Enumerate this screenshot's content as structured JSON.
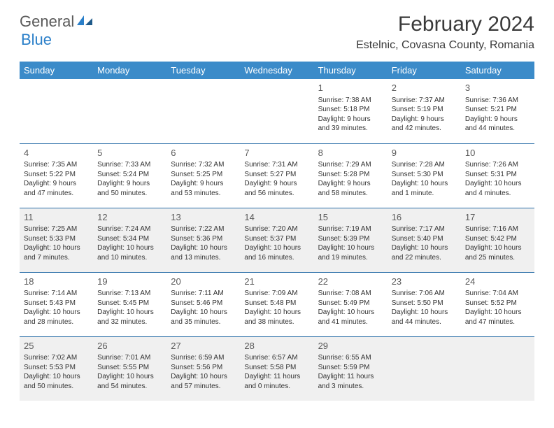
{
  "logo": {
    "part1": "General",
    "part2": "Blue"
  },
  "title": "February 2024",
  "location": "Estelnic, Covasna County, Romania",
  "colors": {
    "header_bg": "#3b8bc9",
    "header_fg": "#ffffff",
    "row_border": "#2a6ea8",
    "shaded_bg": "#f0f0f0",
    "logo_gray": "#5a5a5a",
    "logo_blue": "#2a7fc9"
  },
  "weekdays": [
    "Sunday",
    "Monday",
    "Tuesday",
    "Wednesday",
    "Thursday",
    "Friday",
    "Saturday"
  ],
  "weeks": [
    [
      null,
      null,
      null,
      null,
      {
        "n": "1",
        "sr": "7:38 AM",
        "ss": "5:18 PM",
        "dl": "9 hours and 39 minutes."
      },
      {
        "n": "2",
        "sr": "7:37 AM",
        "ss": "5:19 PM",
        "dl": "9 hours and 42 minutes."
      },
      {
        "n": "3",
        "sr": "7:36 AM",
        "ss": "5:21 PM",
        "dl": "9 hours and 44 minutes."
      }
    ],
    [
      {
        "n": "4",
        "sr": "7:35 AM",
        "ss": "5:22 PM",
        "dl": "9 hours and 47 minutes."
      },
      {
        "n": "5",
        "sr": "7:33 AM",
        "ss": "5:24 PM",
        "dl": "9 hours and 50 minutes."
      },
      {
        "n": "6",
        "sr": "7:32 AM",
        "ss": "5:25 PM",
        "dl": "9 hours and 53 minutes."
      },
      {
        "n": "7",
        "sr": "7:31 AM",
        "ss": "5:27 PM",
        "dl": "9 hours and 56 minutes."
      },
      {
        "n": "8",
        "sr": "7:29 AM",
        "ss": "5:28 PM",
        "dl": "9 hours and 58 minutes."
      },
      {
        "n": "9",
        "sr": "7:28 AM",
        "ss": "5:30 PM",
        "dl": "10 hours and 1 minute."
      },
      {
        "n": "10",
        "sr": "7:26 AM",
        "ss": "5:31 PM",
        "dl": "10 hours and 4 minutes."
      }
    ],
    [
      {
        "n": "11",
        "sr": "7:25 AM",
        "ss": "5:33 PM",
        "dl": "10 hours and 7 minutes."
      },
      {
        "n": "12",
        "sr": "7:24 AM",
        "ss": "5:34 PM",
        "dl": "10 hours and 10 minutes."
      },
      {
        "n": "13",
        "sr": "7:22 AM",
        "ss": "5:36 PM",
        "dl": "10 hours and 13 minutes."
      },
      {
        "n": "14",
        "sr": "7:20 AM",
        "ss": "5:37 PM",
        "dl": "10 hours and 16 minutes."
      },
      {
        "n": "15",
        "sr": "7:19 AM",
        "ss": "5:39 PM",
        "dl": "10 hours and 19 minutes."
      },
      {
        "n": "16",
        "sr": "7:17 AM",
        "ss": "5:40 PM",
        "dl": "10 hours and 22 minutes."
      },
      {
        "n": "17",
        "sr": "7:16 AM",
        "ss": "5:42 PM",
        "dl": "10 hours and 25 minutes."
      }
    ],
    [
      {
        "n": "18",
        "sr": "7:14 AM",
        "ss": "5:43 PM",
        "dl": "10 hours and 28 minutes."
      },
      {
        "n": "19",
        "sr": "7:13 AM",
        "ss": "5:45 PM",
        "dl": "10 hours and 32 minutes."
      },
      {
        "n": "20",
        "sr": "7:11 AM",
        "ss": "5:46 PM",
        "dl": "10 hours and 35 minutes."
      },
      {
        "n": "21",
        "sr": "7:09 AM",
        "ss": "5:48 PM",
        "dl": "10 hours and 38 minutes."
      },
      {
        "n": "22",
        "sr": "7:08 AM",
        "ss": "5:49 PM",
        "dl": "10 hours and 41 minutes."
      },
      {
        "n": "23",
        "sr": "7:06 AM",
        "ss": "5:50 PM",
        "dl": "10 hours and 44 minutes."
      },
      {
        "n": "24",
        "sr": "7:04 AM",
        "ss": "5:52 PM",
        "dl": "10 hours and 47 minutes."
      }
    ],
    [
      {
        "n": "25",
        "sr": "7:02 AM",
        "ss": "5:53 PM",
        "dl": "10 hours and 50 minutes."
      },
      {
        "n": "26",
        "sr": "7:01 AM",
        "ss": "5:55 PM",
        "dl": "10 hours and 54 minutes."
      },
      {
        "n": "27",
        "sr": "6:59 AM",
        "ss": "5:56 PM",
        "dl": "10 hours and 57 minutes."
      },
      {
        "n": "28",
        "sr": "6:57 AM",
        "ss": "5:58 PM",
        "dl": "11 hours and 0 minutes."
      },
      {
        "n": "29",
        "sr": "6:55 AM",
        "ss": "5:59 PM",
        "dl": "11 hours and 3 minutes."
      },
      null,
      null
    ]
  ],
  "shaded_rows": [
    2,
    4
  ],
  "labels": {
    "sunrise": "Sunrise:",
    "sunset": "Sunset:",
    "daylight": "Daylight:"
  }
}
